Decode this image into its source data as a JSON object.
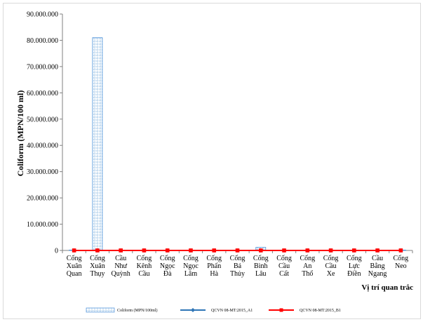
{
  "chart_data": {
    "type": "bar",
    "ylabel": "Coliform (MPN/100 ml)",
    "xlabel": "Vị trí quan trắc",
    "ylim": [
      0,
      90000000
    ],
    "ytick_values": [
      0,
      10000000,
      20000000,
      30000000,
      40000000,
      50000000,
      60000000,
      70000000,
      80000000,
      90000000
    ],
    "yticks": [
      "0",
      "10.000.000",
      "20.000.000",
      "30.000.000",
      "40.000.000",
      "50.000.000",
      "60.000.000",
      "70.000.000",
      "80.000.000",
      "90.000.000"
    ],
    "categories": [
      [
        "Cống",
        "Xuân",
        "Quan"
      ],
      [
        "Cống",
        "Xuân",
        "Thụy"
      ],
      [
        "Cầu",
        "Như",
        "Quỳnh"
      ],
      [
        "Cống",
        "Kênh",
        "Cầu"
      ],
      [
        "Cống",
        "Ngọc",
        "Đà"
      ],
      [
        "Cống",
        "Ngọc",
        "Lâm"
      ],
      [
        "Cống",
        "Phấn",
        "Hà"
      ],
      [
        "Cống",
        "Bá",
        "Thủy"
      ],
      [
        "Cống",
        "Bình",
        "Lâu"
      ],
      [
        "Cống",
        "Cầu",
        "Cất"
      ],
      [
        "Cống",
        "An",
        "Thổ"
      ],
      [
        "Cống",
        "Cầu",
        "Xe"
      ],
      [
        "Cống",
        "Lực",
        "Điền"
      ],
      [
        "Cầu",
        "Bằng",
        "Ngang"
      ],
      [
        "Cống",
        "Neo"
      ]
    ],
    "series": [
      {
        "name": "Coliform (MPN/100ml)",
        "kind": "bar",
        "color": "#4a90d9",
        "values": [
          20000,
          81000000,
          20000,
          15000,
          12000,
          15000,
          15000,
          15000,
          1200000,
          15000,
          12000,
          15000,
          15000,
          12000,
          15000
        ]
      },
      {
        "name": "QCVN 08-MT:2015_A1",
        "kind": "line",
        "color": "#2e75b6",
        "values": [
          2500,
          2500,
          2500,
          2500,
          2500,
          2500,
          2500,
          2500,
          2500,
          2500,
          2500,
          2500,
          2500,
          2500,
          2500
        ]
      },
      {
        "name": "QCVN 08-MT:2015_B1",
        "kind": "line",
        "color": "#ff0000",
        "values": [
          7500,
          7500,
          7500,
          7500,
          7500,
          7500,
          7500,
          7500,
          7500,
          7500,
          7500,
          7500,
          7500,
          7500,
          7500
        ]
      }
    ],
    "legend_position": "bottom",
    "grid": false
  }
}
